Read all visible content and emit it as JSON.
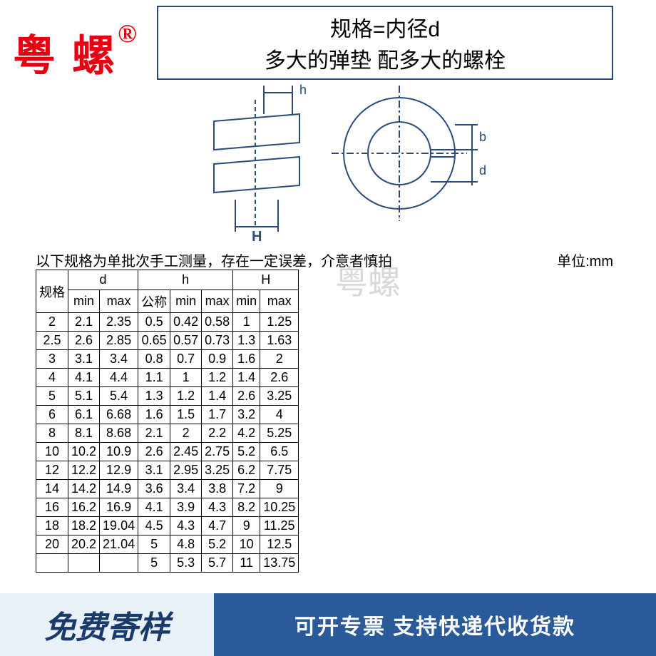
{
  "brand": "粤 螺",
  "brand_symbol": "®",
  "header": {
    "line1": "规格=内径d",
    "line2": "多大的弹垫 配多大的螺栓"
  },
  "diagram": {
    "label_h": "h",
    "label_H": "H",
    "label_b": "b",
    "label_d": "d",
    "stroke": "#2a4a7a"
  },
  "note": "以下规格为单批次手工测量，存在一定误差，介意者慎拍",
  "unit": "单位:mm",
  "watermark": "粤螺",
  "table": {
    "col_spec": "规格",
    "groups": [
      "d",
      "h",
      "H"
    ],
    "sub_d": [
      "min",
      "max"
    ],
    "sub_h": [
      "公称",
      "min",
      "max"
    ],
    "sub_H": [
      "min",
      "max"
    ],
    "rows": [
      [
        "2",
        "2.1",
        "2.35",
        "0.5",
        "0.42",
        "0.58",
        "1",
        "1.25"
      ],
      [
        "2.5",
        "2.6",
        "2.85",
        "0.65",
        "0.57",
        "0.73",
        "1.3",
        "1.63"
      ],
      [
        "3",
        "3.1",
        "3.4",
        "0.8",
        "0.7",
        "0.9",
        "1.6",
        "2"
      ],
      [
        "4",
        "4.1",
        "4.4",
        "1.1",
        "1",
        "1.2",
        "1.4",
        "2.6"
      ],
      [
        "5",
        "5.1",
        "5.4",
        "1.3",
        "1.2",
        "1.4",
        "2.6",
        "3.25"
      ],
      [
        "6",
        "6.1",
        "6.68",
        "1.6",
        "1.5",
        "1.7",
        "3.2",
        "4"
      ],
      [
        "8",
        "8.1",
        "8.68",
        "2.1",
        "2",
        "2.2",
        "4.2",
        "5.25"
      ],
      [
        "10",
        "10.2",
        "10.9",
        "2.6",
        "2.45",
        "2.75",
        "5.2",
        "6.5"
      ],
      [
        "12",
        "12.2",
        "12.9",
        "3.1",
        "2.95",
        "3.25",
        "6.2",
        "7.75"
      ],
      [
        "14",
        "14.2",
        "14.9",
        "3.6",
        "3.4",
        "3.8",
        "7.2",
        "9"
      ],
      [
        "16",
        "16.2",
        "16.9",
        "4.1",
        "3.9",
        "4.3",
        "8.2",
        "10.25"
      ],
      [
        "18",
        "18.2",
        "19.04",
        "4.5",
        "4.3",
        "4.7",
        "9",
        "11.25"
      ],
      [
        "20",
        "20.2",
        "21.04",
        "5",
        "4.8",
        "5.2",
        "10",
        "12.5"
      ],
      [
        "",
        "",
        "",
        "5",
        "5.3",
        "5.7",
        "11",
        "13.75"
      ]
    ]
  },
  "footer": {
    "left": "免费寄样",
    "right": "可开专票 支持快递代收货款"
  },
  "colors": {
    "brand_red": "#e60012",
    "diagram_blue": "#2a4a7a",
    "footer_left_bg": "#e8f0f8",
    "footer_left_fg": "#1a3a6a",
    "footer_right_bg": "#2a5a9a",
    "footer_right_fg": "#ffffff",
    "watermark": "#d8d8d8",
    "border": "#000000"
  }
}
